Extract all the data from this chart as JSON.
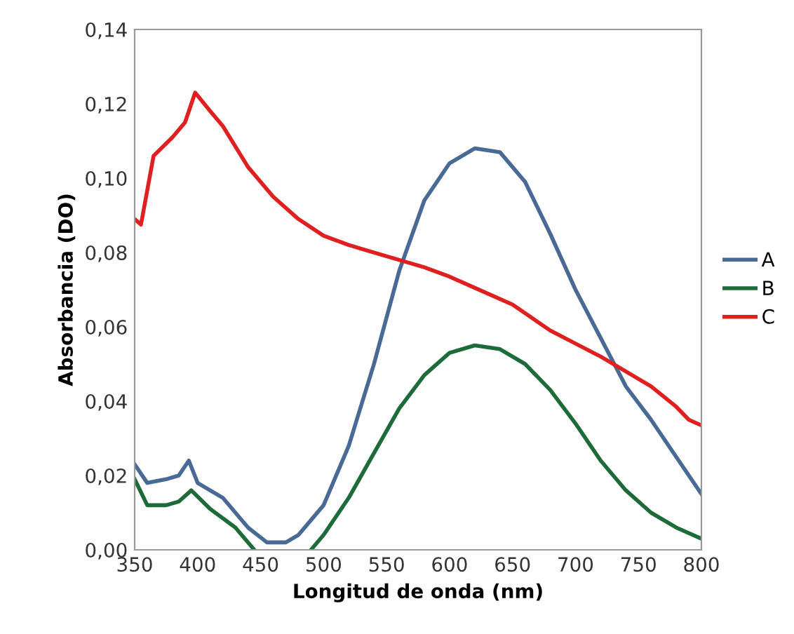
{
  "chart_data": {
    "type": "line",
    "xlabel": "Longitud de onda (nm)",
    "ylabel": "Absorbancia (DO)",
    "xlim": [
      350,
      800
    ],
    "xticks": [
      350,
      400,
      450,
      500,
      550,
      600,
      650,
      700,
      750,
      800
    ],
    "ylim": [
      0,
      0.14
    ],
    "yticks": [
      {
        "value": 0,
        "label": "0,00"
      },
      {
        "value": 0.02,
        "label": "0,02"
      },
      {
        "value": 0.04,
        "label": "0,04"
      },
      {
        "value": 0.06,
        "label": "0,06"
      },
      {
        "value": 0.08,
        "label": "0,08"
      },
      {
        "value": 0.1,
        "label": "0,10"
      },
      {
        "value": 0.12,
        "label": "0,12"
      },
      {
        "value": 0.14,
        "label": "0,14"
      }
    ],
    "grid": false,
    "legend": "right",
    "marker": "none",
    "line_style": "solid",
    "series": [
      {
        "name": "A",
        "color": "#4a6a96",
        "x": [
          350,
          360,
          375,
          385,
          393,
          400,
          420,
          440,
          455,
          470,
          480,
          500,
          520,
          540,
          560,
          580,
          600,
          620,
          640,
          660,
          680,
          700,
          720,
          740,
          760,
          780,
          800
        ],
        "values": [
          0.023,
          0.018,
          0.019,
          0.02,
          0.024,
          0.018,
          0.014,
          0.006,
          0.002,
          0.002,
          0.004,
          0.012,
          0.028,
          0.05,
          0.075,
          0.094,
          0.104,
          0.108,
          0.107,
          0.099,
          0.085,
          0.07,
          0.057,
          0.044,
          0.035,
          0.025,
          0.015
        ]
      },
      {
        "name": "B",
        "color": "#1e6b3a",
        "x": [
          350,
          360,
          375,
          385,
          395,
          410,
          430,
          445,
          460,
          475,
          490,
          500,
          520,
          540,
          560,
          580,
          600,
          620,
          640,
          660,
          680,
          700,
          720,
          740,
          760,
          780,
          800
        ],
        "values": [
          0.019,
          0.012,
          0.012,
          0.013,
          0.016,
          0.011,
          0.006,
          0.0,
          null,
          null,
          0.0,
          0.004,
          0.014,
          0.026,
          0.038,
          0.047,
          0.053,
          0.055,
          0.054,
          0.05,
          0.043,
          0.034,
          0.024,
          0.016,
          0.01,
          0.006,
          0.003
        ]
      },
      {
        "name": "C",
        "color": "#e02020",
        "x": [
          350,
          355,
          365,
          380,
          390,
          398,
          410,
          420,
          440,
          460,
          480,
          500,
          520,
          550,
          580,
          600,
          620,
          650,
          680,
          700,
          720,
          740,
          760,
          780,
          790,
          800
        ],
        "values": [
          0.089,
          0.0875,
          0.106,
          0.111,
          0.115,
          0.123,
          0.118,
          0.114,
          0.103,
          0.095,
          0.089,
          0.0845,
          0.082,
          0.079,
          0.076,
          0.0735,
          0.0705,
          0.066,
          0.059,
          0.0555,
          0.052,
          0.048,
          0.044,
          0.0385,
          0.035,
          0.0335
        ]
      }
    ]
  }
}
